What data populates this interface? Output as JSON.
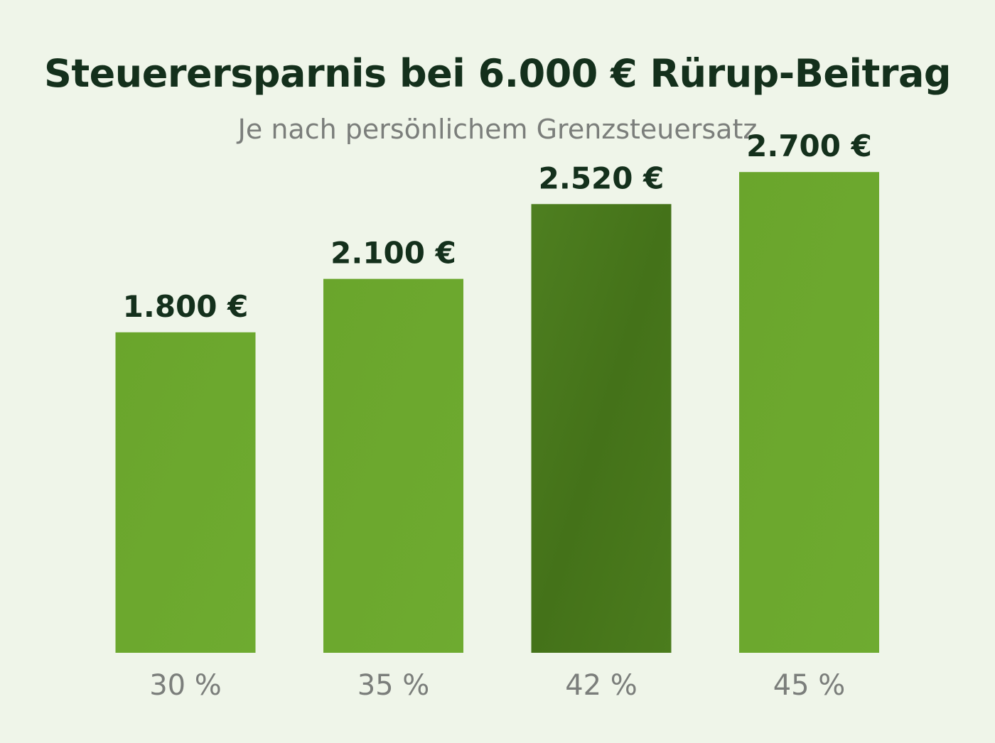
{
  "chart_data": {
    "type": "bar",
    "title": "Steuerersparnis bei 6.000 € Rürup-Beitrag",
    "subtitle": "Je nach persönlichem Grenzsteuersatz",
    "categories": [
      "30 %",
      "35 %",
      "42 %",
      "45 %"
    ],
    "values": [
      1800,
      2100,
      2520,
      2700
    ],
    "value_labels": [
      "1.800 €",
      "2.100 €",
      "2.520 €",
      "2.700 €"
    ],
    "highlight_index": 2,
    "ylim": [
      0,
      3000
    ],
    "grid": false,
    "colors": {
      "bar": "#6aa52c",
      "bar_highlight": "#4a7a1f",
      "value_text": "#14301c",
      "category_text": "#7b7e7b",
      "background": "#eff5e9"
    }
  }
}
